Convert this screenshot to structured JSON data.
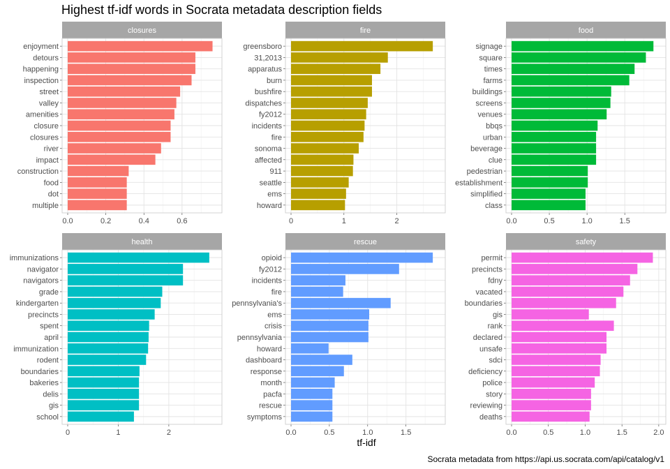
{
  "title": "Highest tf-idf words in Socrata metadata description fields",
  "caption": "Socrata metadata from https://api.us.socrata.com/api/catalog/v1",
  "chart_data": {
    "type": "bar",
    "orientation": "horizontal",
    "title": "Highest tf-idf words in Socrata metadata description fields",
    "xlabel": "tf-idf",
    "ylabel": "",
    "grid": true,
    "legend": "none",
    "facets": [
      {
        "name": "closures",
        "color": "#F8766D",
        "categories": [
          "enjoyment",
          "detours",
          "happening",
          "inspection",
          "street",
          "valley",
          "amenities",
          "closure",
          "closures",
          "river",
          "impact",
          "construction",
          "food",
          "dot",
          "multiple"
        ],
        "values": [
          0.76,
          0.67,
          0.67,
          0.65,
          0.59,
          0.57,
          0.56,
          0.54,
          0.54,
          0.49,
          0.46,
          0.32,
          0.31,
          0.31,
          0.31
        ],
        "xlim": [
          0,
          0.78
        ],
        "xticks": [
          0,
          0.2,
          0.4,
          0.6
        ],
        "xtick_labels": [
          "0.0",
          "0.2",
          "0.4",
          "0.6"
        ]
      },
      {
        "name": "fire",
        "color": "#B79F00",
        "categories": [
          "greensboro",
          "31,2013",
          "apparatus",
          "burn",
          "bushfire",
          "dispatches",
          "fy2012",
          "incidents",
          "fire",
          "sonoma",
          "affected",
          "911",
          "seattle",
          "ems",
          "howard"
        ],
        "values": [
          2.68,
          1.83,
          1.69,
          1.53,
          1.53,
          1.45,
          1.42,
          1.39,
          1.37,
          1.28,
          1.18,
          1.17,
          1.09,
          1.04,
          1.02
        ],
        "xlim": [
          0,
          2.81
        ],
        "xticks": [
          0,
          1,
          2
        ],
        "xtick_labels": [
          "0",
          "1",
          "2"
        ]
      },
      {
        "name": "food",
        "color": "#00BA38",
        "categories": [
          "signage",
          "square",
          "times",
          "farms",
          "buildings",
          "screens",
          "venues",
          "bbqs",
          "urban",
          "beverage",
          "clue",
          "pedestrian",
          "establishment",
          "simplified",
          "class"
        ],
        "values": [
          1.88,
          1.78,
          1.63,
          1.56,
          1.32,
          1.31,
          1.26,
          1.14,
          1.12,
          1.12,
          1.12,
          1.01,
          1.01,
          0.98,
          0.98
        ],
        "xlim": [
          0,
          1.97
        ],
        "xticks": [
          0,
          0.5,
          1,
          1.5
        ],
        "xtick_labels": [
          "0.0",
          "0.5",
          "1.0",
          "1.5"
        ]
      },
      {
        "name": "health",
        "color": "#00BFC4",
        "categories": [
          "immunizations",
          "navigator",
          "navigators",
          "grade",
          "kindergarten",
          "precincts",
          "spent",
          "april",
          "immunization",
          "rodent",
          "boundaries",
          "bakeries",
          "delis",
          "gis",
          "school"
        ],
        "values": [
          2.8,
          2.28,
          2.28,
          1.87,
          1.84,
          1.72,
          1.61,
          1.6,
          1.59,
          1.55,
          1.42,
          1.41,
          1.41,
          1.41,
          1.31
        ],
        "xlim": [
          0,
          2.94
        ],
        "xticks": [
          0,
          1,
          2
        ],
        "xtick_labels": [
          "0",
          "1",
          "2"
        ]
      },
      {
        "name": "rescue",
        "color": "#619CFF",
        "categories": [
          "opioid",
          "fy2012",
          "incidents",
          "fire",
          "pennsylvania's",
          "ems",
          "crisis",
          "pennsylvania",
          "howard",
          "dashboard",
          "response",
          "month",
          "pacfa",
          "rescue",
          "symptoms"
        ],
        "values": [
          1.85,
          1.41,
          0.71,
          0.68,
          1.3,
          1.02,
          1.01,
          1.01,
          0.49,
          0.8,
          0.69,
          0.57,
          0.54,
          0.54,
          0.54
        ],
        "xlim": [
          0,
          1.94
        ],
        "xticks": [
          0,
          0.5,
          1,
          1.5
        ],
        "xtick_labels": [
          "0.0",
          "0.5",
          "1.0",
          "1.5"
        ]
      },
      {
        "name": "safety",
        "color": "#F564E3",
        "categories": [
          "permit",
          "precincts",
          "fdny",
          "vacated",
          "boundaries",
          "gis",
          "rank",
          "declared",
          "unsafe",
          "sdci",
          "deficiency",
          "police",
          "story",
          "reviewing",
          "deaths"
        ],
        "values": [
          1.92,
          1.71,
          1.61,
          1.52,
          1.42,
          1.05,
          1.39,
          1.29,
          1.29,
          1.21,
          1.2,
          1.13,
          1.08,
          1.08,
          1.06
        ],
        "xlim": [
          0,
          2.02
        ],
        "xticks": [
          0,
          0.5,
          1,
          1.5,
          2
        ],
        "xtick_labels": [
          "0.0",
          "0.5",
          "1.0",
          "1.5",
          "2.0"
        ]
      }
    ]
  }
}
